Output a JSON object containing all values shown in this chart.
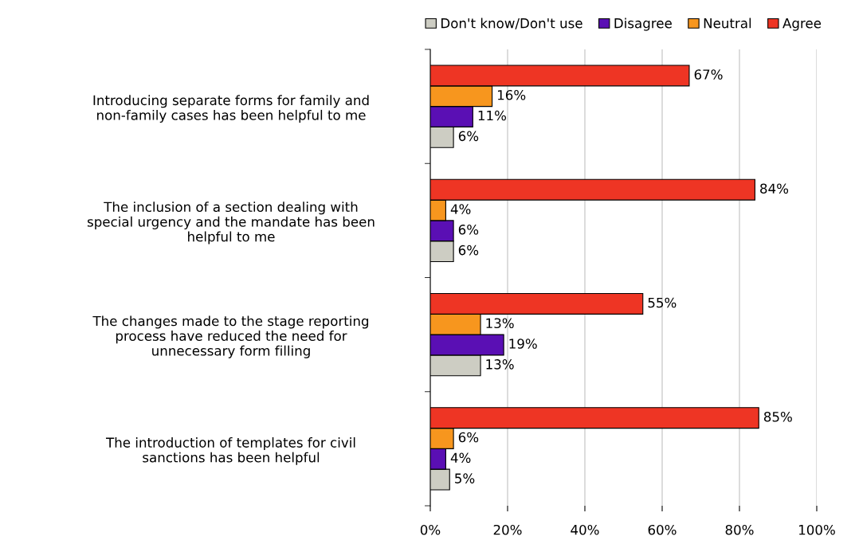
{
  "chart_data": {
    "type": "bar",
    "orientation": "horizontal",
    "categories": [
      "Introducing separate forms for family and\nnon-family cases has been helpful to me",
      "The inclusion of a section dealing with\nspecial urgency and the mandate has been\nhelpful to me",
      "The changes made to the stage reporting\nprocess have reduced the need for\nunnecessary form filling",
      "The introduction of templates for civil\nsanctions has been helpful"
    ],
    "series": [
      {
        "name": "Don't know/Don't use",
        "color": "#cdcdc3",
        "values": [
          6,
          6,
          13,
          5
        ],
        "value_labels": [
          "6%",
          "6%",
          "13%",
          "5%"
        ]
      },
      {
        "name": "Disagree",
        "color": "#5a0fb4",
        "values": [
          11,
          6,
          19,
          4
        ],
        "value_labels": [
          "11%",
          "6%",
          "19%",
          "4%"
        ]
      },
      {
        "name": "Neutral",
        "color": "#f7961e",
        "values": [
          16,
          4,
          13,
          6
        ],
        "value_labels": [
          "16%",
          "4%",
          "13%",
          "6%"
        ]
      },
      {
        "name": "Agree",
        "color": "#ee3524",
        "values": [
          67,
          84,
          55,
          85
        ],
        "value_labels": [
          "67%",
          "84%",
          "55%",
          "85%"
        ]
      }
    ],
    "xlim": [
      0,
      100
    ],
    "xticks": [
      {
        "value": 0,
        "label": "0%"
      },
      {
        "value": 20,
        "label": "20%"
      },
      {
        "value": 40,
        "label": "40%"
      },
      {
        "value": 60,
        "label": "60%"
      },
      {
        "value": 80,
        "label": "80%"
      },
      {
        "value": 100,
        "label": "100%"
      }
    ],
    "grid": "x",
    "legend": "top"
  }
}
